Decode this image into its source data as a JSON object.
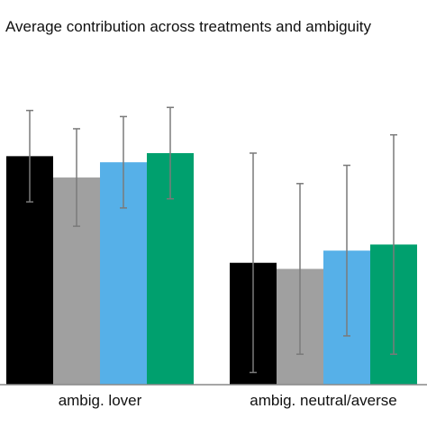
{
  "chart_data": {
    "type": "bar",
    "title": "Average contribution across treatments and ambiguity",
    "categories": [
      "ambig. lover",
      "ambig. neutral/averse"
    ],
    "series": [
      {
        "color": "#000000",
        "values": [
          7.5,
          4.0
        ],
        "err": [
          1.5,
          3.6
        ]
      },
      {
        "color": "#a0a0a0",
        "values": [
          6.8,
          3.8
        ],
        "err": [
          1.6,
          2.8
        ]
      },
      {
        "color": "#56b0e8",
        "values": [
          7.3,
          4.4
        ],
        "err": [
          1.5,
          2.8
        ]
      },
      {
        "color": "#00a06e",
        "values": [
          7.6,
          4.6
        ],
        "err": [
          1.5,
          3.6
        ]
      }
    ],
    "ylim": [
      0,
      11
    ],
    "grid": false,
    "legend": "none"
  }
}
